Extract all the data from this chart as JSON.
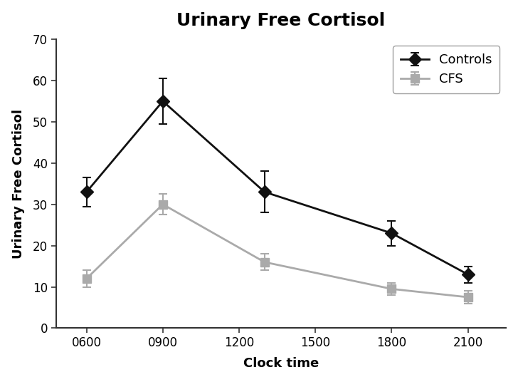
{
  "title": "Urinary Free Cortisol",
  "xlabel": "Clock time",
  "ylabel": "Urinary Free Cortisol",
  "x_values": [
    600,
    900,
    1300,
    1800,
    2100
  ],
  "x_tick_labels": [
    "0600",
    "0900",
    "1200",
    "1500",
    "1800",
    "2100"
  ],
  "x_ticks": [
    600,
    900,
    1200,
    1500,
    1800,
    2100
  ],
  "controls_y": [
    33,
    55,
    33,
    23,
    13
  ],
  "controls_yerr": [
    3.5,
    5.5,
    5.0,
    3.0,
    2.0
  ],
  "cfs_y": [
    12,
    30,
    16,
    9.5,
    7.5
  ],
  "cfs_yerr": [
    2.0,
    2.5,
    2.0,
    1.5,
    1.5
  ],
  "ylim": [
    0,
    70
  ],
  "yticks": [
    0,
    10,
    20,
    30,
    40,
    50,
    60,
    70
  ],
  "xlim": [
    480,
    2250
  ],
  "controls_color": "#111111",
  "cfs_color": "#aaaaaa",
  "background_color": "#ffffff",
  "plot_bg_color": "#ffffff",
  "border_color": "#cccccc",
  "legend_labels": [
    "Controls",
    "CFS"
  ],
  "title_fontsize": 18,
  "label_fontsize": 13,
  "tick_fontsize": 12,
  "legend_fontsize": 13
}
